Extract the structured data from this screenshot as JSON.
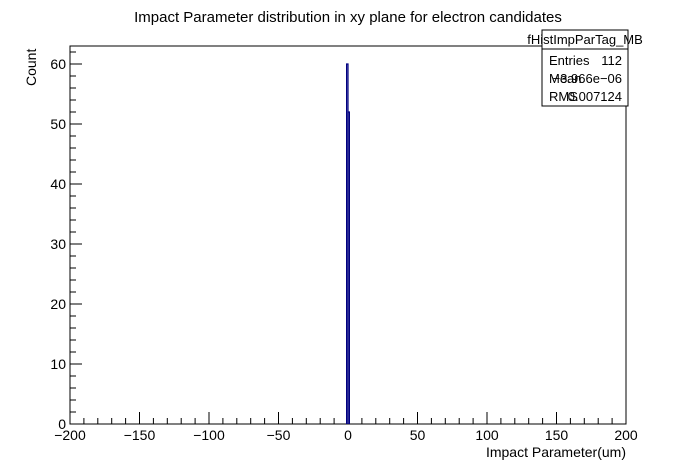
{
  "chart_data": {
    "type": "bar",
    "title": "Impact Parameter distribution in xy plane for electron candidates",
    "xlabel": "Impact Parameter(um)",
    "ylabel": "Count",
    "xlim": [
      -200,
      200
    ],
    "ylim": [
      0,
      63
    ],
    "xticks": [
      -200,
      -150,
      -100,
      -50,
      0,
      50,
      100,
      150,
      200
    ],
    "yticks": [
      0,
      10,
      20,
      30,
      40,
      50,
      60
    ],
    "xtick_labels": [
      "−200",
      "−150",
      "−100",
      "−50",
      "0",
      "50",
      "100",
      "150",
      "200"
    ],
    "ytick_labels": [
      "0",
      "10",
      "20",
      "30",
      "40",
      "50",
      "60"
    ],
    "grid": false,
    "line_color": "#000080",
    "bins": [
      {
        "low": -1.0,
        "high": 0.0,
        "value": 60
      },
      {
        "low": 0.0,
        "high": 1.0,
        "value": 52
      }
    ],
    "stats": {
      "name": "fHistImpParTag_MB",
      "rows": [
        {
          "label": "Entries",
          "value": "112"
        },
        {
          "label": "Mean",
          "value": "−3.966e−06"
        },
        {
          "label": "RMS",
          "value": "0.007124"
        }
      ]
    }
  }
}
